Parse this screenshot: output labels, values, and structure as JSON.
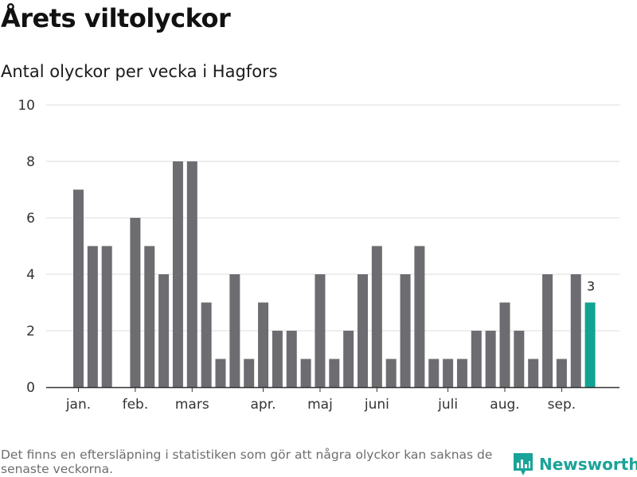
{
  "title": "Årets viltolyckor",
  "subtitle": "Antal olyckor per vecka i Hagfors",
  "footnote": "Det finns en eftersläpning i statistiken som gör att några olyckor kan saknas de senaste veckorna.",
  "brand": {
    "name": "Newsworthy",
    "icon": "newsworthy-logo-icon"
  },
  "colors": {
    "bar": "#6d6c71",
    "highlight": "#13a393",
    "grid": "#dddddd",
    "axis": "#333333"
  },
  "chart_data": {
    "type": "bar",
    "title": "Antal olyckor per vecka i Hagfors",
    "xlabel": "",
    "ylabel": "",
    "ylim": [
      0,
      10
    ],
    "yticks": [
      0,
      2,
      4,
      6,
      8,
      10
    ],
    "grid": true,
    "categories": [
      "1",
      "2",
      "3",
      "4",
      "5",
      "6",
      "7",
      "8",
      "9",
      "10",
      "11",
      "12",
      "13",
      "14",
      "15",
      "16",
      "17",
      "18",
      "19",
      "20",
      "21",
      "22",
      "23",
      "24",
      "25",
      "26",
      "27",
      "28",
      "29",
      "30",
      "31",
      "32",
      "33",
      "34",
      "35",
      "36",
      "37",
      "38"
    ],
    "values": [
      7,
      5,
      5,
      0,
      6,
      5,
      4,
      8,
      8,
      3,
      1,
      4,
      1,
      3,
      2,
      2,
      1,
      4,
      1,
      2,
      4,
      5,
      1,
      4,
      5,
      1,
      1,
      1,
      2,
      2,
      3,
      2,
      1,
      4,
      1,
      4,
      3,
      0
    ],
    "month_labels": [
      {
        "label": "jan.",
        "week": 1
      },
      {
        "label": "feb.",
        "week": 5
      },
      {
        "label": "mars",
        "week": 9
      },
      {
        "label": "apr.",
        "week": 14
      },
      {
        "label": "maj",
        "week": 18
      },
      {
        "label": "juni",
        "week": 22
      },
      {
        "label": "juli",
        "week": 27
      },
      {
        "label": "aug.",
        "week": 31
      },
      {
        "label": "sep.",
        "week": 35
      }
    ],
    "highlight": {
      "week": 37,
      "value": 3,
      "label": "3"
    }
  }
}
